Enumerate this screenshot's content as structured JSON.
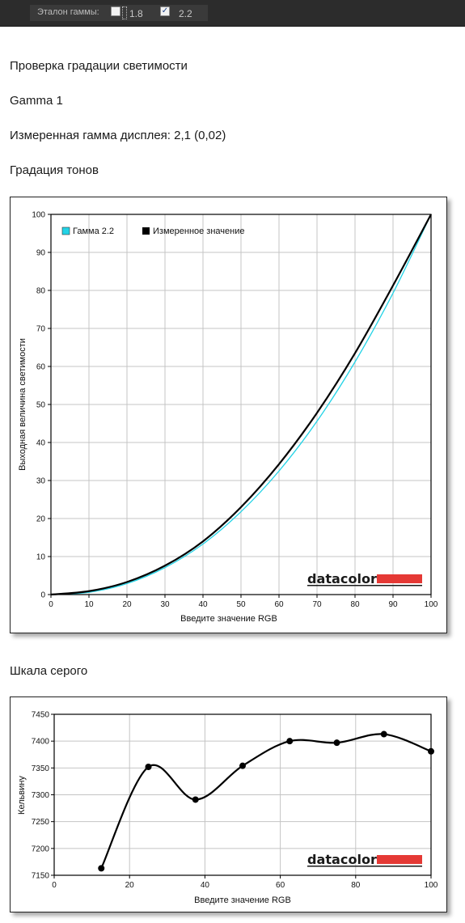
{
  "toolbar": {
    "gamma_ref_label": "Эталон гаммы:",
    "option_1": {
      "label": "1.8",
      "checked": false
    },
    "option_2": {
      "label": "2.2",
      "checked": true
    }
  },
  "headings": {
    "luminance_check": "Проверка градации светимости",
    "profile_name": "Gamma 1",
    "measured_gamma": "Измеренная гамма дисплея: 2,1 (0,02)",
    "tone_gradation": "Градация тонов",
    "gray_scale": "Шкала серого"
  },
  "logo": {
    "text": "datacolor",
    "bar_color": "#e53935"
  },
  "chart_data": [
    {
      "type": "line",
      "xlabel": "Введите значение RGB",
      "ylabel": "Выходная величина светимости",
      "xlim": [
        0,
        100
      ],
      "ylim": [
        0,
        100
      ],
      "xticks": [
        "0",
        "10",
        "20",
        "30",
        "40",
        "50",
        "60",
        "70",
        "80",
        "90",
        "100"
      ],
      "yticks": [
        "0",
        "10",
        "20",
        "30",
        "40",
        "50",
        "60",
        "70",
        "80",
        "90",
        "100"
      ],
      "grid": true,
      "legend": "top-left",
      "series": [
        {
          "name": "Гамма 2.2",
          "color": "#22d3e6",
          "x": [
            0,
            10,
            20,
            30,
            40,
            50,
            60,
            70,
            80,
            90,
            100
          ],
          "y": [
            0,
            0.6,
            2.9,
            7.1,
            13.3,
            21.8,
            32.5,
            45.6,
            61.2,
            79.3,
            100
          ]
        },
        {
          "name": "Измеренное значение",
          "color": "#000000",
          "x": [
            0,
            10,
            20,
            30,
            40,
            50,
            60,
            70,
            80,
            90,
            100
          ],
          "y": [
            0,
            0.9,
            3.3,
            7.6,
            14.0,
            23.0,
            34.3,
            47.8,
            63.5,
            81.3,
            100
          ]
        }
      ]
    },
    {
      "type": "line",
      "xlabel": "Введите значение RGB",
      "ylabel": "Кельвину",
      "xlim": [
        0,
        100
      ],
      "ylim": [
        7150,
        7450
      ],
      "xticks": [
        "0",
        "20",
        "40",
        "60",
        "80",
        "100"
      ],
      "yticks": [
        "7150",
        "7200",
        "7250",
        "7300",
        "7350",
        "7400",
        "7450"
      ],
      "grid": true,
      "series": [
        {
          "name": "",
          "color": "#000000",
          "x": [
            12.5,
            25,
            37.5,
            50,
            62.5,
            75,
            87.5,
            100
          ],
          "y": [
            7163,
            7352,
            7291,
            7354,
            7400,
            7397,
            7413,
            7381
          ]
        }
      ]
    }
  ]
}
